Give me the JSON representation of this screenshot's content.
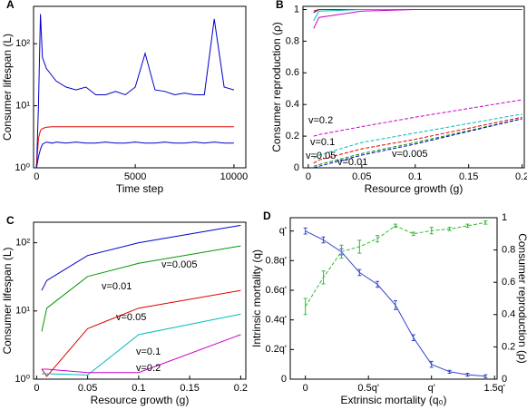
{
  "chart_data": [
    {
      "type": "line",
      "panel_label": "A",
      "xlabel": "Time step",
      "ylabel": "Consumer lifespan (L)",
      "ylog": true,
      "x": [
        0,
        100,
        200,
        300,
        500,
        800,
        1000,
        1500,
        2000,
        2500,
        3000,
        3500,
        4000,
        4500,
        5000,
        5500,
        6000,
        6500,
        7000,
        7500,
        8000,
        8500,
        9000,
        9500,
        10000
      ],
      "xlim": [
        -150,
        10600
      ],
      "xticks": [
        0,
        5000,
        10000
      ],
      "ylim": [
        1,
        400
      ],
      "yticks": [
        {
          "value": 1,
          "label": "10⁰"
        },
        {
          "value": 10,
          "label": "10¹"
        },
        {
          "value": 100,
          "label": "10²"
        }
      ],
      "series": [
        {
          "color": "#0000cc",
          "values": [
            1,
            10,
            300,
            60,
            40,
            30,
            25,
            20,
            18,
            20,
            15,
            15,
            17,
            15,
            20,
            70,
            18,
            17,
            15,
            16,
            15,
            15,
            250,
            20,
            18
          ]
        },
        {
          "color": "#dd0000",
          "values": [
            1,
            3,
            4,
            4.3,
            4.5,
            4.6,
            4.6,
            4.6,
            4.6,
            4.6,
            4.6,
            4.6,
            4.6,
            4.6,
            4.6,
            4.6,
            4.6,
            4.6,
            4.6,
            4.6,
            4.6,
            4.6,
            4.6,
            4.6,
            4.6
          ]
        },
        {
          "color": "#0000cc",
          "values": [
            1,
            1.5,
            2,
            2.4,
            2.6,
            2.5,
            2.6,
            2.5,
            2.6,
            2.5,
            2.5,
            2.6,
            2.5,
            2.5,
            2.6,
            2.5,
            2.5,
            2.6,
            2.5,
            2.5,
            2.6,
            2.5,
            2.6,
            2.5,
            2.5
          ]
        }
      ]
    },
    {
      "type": "line",
      "panel_label": "B",
      "xlabel": "Resource growth (g)",
      "ylabel": "Consumer reproduction (ρ)",
      "x": [
        0.005,
        0.01,
        0.05,
        0.1,
        0.2
      ],
      "xlim": [
        -0.005,
        0.202
      ],
      "xticks": [
        0,
        0.05,
        0.1,
        0.15,
        0.2
      ],
      "ylim": [
        0,
        1.02
      ],
      "yticks": [
        0,
        0.2,
        0.4,
        0.6,
        0.8,
        1
      ],
      "series": [
        {
          "color": "#0000cc",
          "values": [
            0.98,
            1,
            1,
            1,
            1
          ]
        },
        {
          "color": "#009900",
          "values": [
            0.99,
            1,
            1,
            1,
            1
          ]
        },
        {
          "color": "#dd0000",
          "values": [
            0.99,
            1,
            1,
            1,
            1
          ]
        },
        {
          "color": "#00bbbb",
          "values": [
            0.93,
            0.99,
            1,
            1,
            1
          ]
        },
        {
          "color": "#cc00cc",
          "values": [
            0.88,
            0.95,
            0.99,
            1,
            1
          ]
        },
        {
          "name": "v=0.2",
          "color": "#cc00cc",
          "dash": true,
          "values": [
            0.2,
            0.21,
            0.26,
            0.32,
            0.43
          ]
        },
        {
          "name": "v=0.1",
          "color": "#00bbbb",
          "dash": true,
          "values": [
            0.06,
            0.08,
            0.16,
            0.22,
            0.34
          ]
        },
        {
          "name": "v=0.05",
          "color": "#dd0000",
          "dash": true,
          "values": [
            0.03,
            0.05,
            0.12,
            0.18,
            0.32
          ]
        },
        {
          "name": "v=0.01",
          "color": "#009900",
          "dash": true,
          "values": [
            0.01,
            0.02,
            0.09,
            0.16,
            0.31
          ]
        },
        {
          "name": "v=0.005",
          "color": "#0000cc",
          "dash": true,
          "values": [
            0,
            0.01,
            0.08,
            0.15,
            0.31
          ]
        }
      ]
    },
    {
      "type": "line",
      "panel_label": "C",
      "xlabel": "Resource growth (g)",
      "ylabel": "Consumer lifespan (L)",
      "ylog": true,
      "x": [
        0.005,
        0.01,
        0.05,
        0.1,
        0.2
      ],
      "xlim": [
        -0.003,
        0.205
      ],
      "xticks": [
        0,
        0.05,
        0.1,
        0.15,
        0.2
      ],
      "ylim": [
        1,
        200
      ],
      "yticks": [
        {
          "value": 1,
          "label": "10⁰"
        },
        {
          "value": 10,
          "label": "10¹"
        },
        {
          "value": 100,
          "label": "10²"
        }
      ],
      "series": [
        {
          "name": "v=0.005",
          "color": "#0000cc",
          "values": [
            20,
            28,
            65,
            100,
            180
          ]
        },
        {
          "name": "v=0.01",
          "color": "#009900",
          "values": [
            5,
            11,
            32,
            50,
            90
          ]
        },
        {
          "name": "v=0.05",
          "color": "#dd0000",
          "values": [
            1.4,
            1.1,
            5.5,
            11,
            20
          ]
        },
        {
          "name": "v=0.1",
          "color": "#00bbbb",
          "values": [
            1.2,
            1.2,
            1.15,
            4.5,
            9
          ]
        },
        {
          "name": "v=0.2",
          "color": "#cc00cc",
          "values": [
            1.4,
            1.4,
            1.25,
            1.25,
            4.5
          ]
        }
      ]
    },
    {
      "type": "line",
      "panel_label": "D",
      "xlabel": "Extrinsic mortality (q₀)",
      "ylabel": "Intrinsic mortality (q)",
      "y2label": "Consumer reproduction (ρ)",
      "x": [
        0,
        0.143,
        0.286,
        0.429,
        0.571,
        0.714,
        0.857,
        1,
        1.143,
        1.286,
        1.429
      ],
      "xlim": [
        -0.12,
        1.52
      ],
      "xticks": [
        0,
        {
          "value": 0.5,
          "label": "0.5q'"
        },
        {
          "value": 1,
          "label": "q'"
        },
        {
          "value": 1.5,
          "label": "1.5q'"
        }
      ],
      "ylim": [
        0,
        1.09
      ],
      "yticks": [
        0,
        {
          "value": 0.2,
          "label": "0.2q'"
        },
        {
          "value": 0.4,
          "label": "0.4q'"
        },
        {
          "value": 0.6,
          "label": "0.6q'"
        },
        {
          "value": 0.8,
          "label": "0.8q'"
        },
        {
          "value": 1,
          "label": "q'"
        }
      ],
      "y2lim": [
        0,
        1
      ],
      "y2ticks": [
        0,
        0.2,
        0.4,
        0.6,
        0.8,
        1
      ],
      "series": [
        {
          "color": "#3344cc",
          "values": [
            1.0,
            0.94,
            0.86,
            0.72,
            0.64,
            0.5,
            0.28,
            0.1,
            0.05,
            0.03,
            0.02
          ],
          "errors": [
            0.02,
            0.02,
            0.02,
            0.02,
            0.02,
            0.03,
            0.02,
            0.02,
            0.01,
            0.01,
            0.01
          ]
        },
        {
          "color": "#33bb33",
          "axis": "y2",
          "dash": true,
          "values": [
            0.45,
            0.63,
            0.79,
            0.82,
            0.87,
            0.95,
            0.9,
            0.92,
            0.93,
            0.95,
            0.97
          ],
          "errors": [
            0.05,
            0.04,
            0.04,
            0.04,
            0.02,
            0.01,
            0.01,
            0.02,
            0.01,
            0.01,
            0.01
          ]
        }
      ]
    }
  ]
}
